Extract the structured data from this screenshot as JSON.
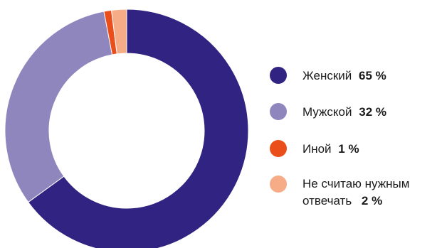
{
  "chart_data": {
    "type": "pie",
    "style": "donut",
    "slices": [
      {
        "label": "Женский",
        "value": 65,
        "value_text": "65 %",
        "color": "#312381"
      },
      {
        "label": "Мужской",
        "value": 32,
        "value_text": "32 %",
        "color": "#8f86be"
      },
      {
        "label": "Иной",
        "value": 1,
        "value_text": "1 %",
        "color": "#e94e1b"
      },
      {
        "label_lines": [
          "Не считаю нужным",
          "отвечать"
        ],
        "value": 2,
        "value_text": "2 %",
        "color": "#f6ac87"
      }
    ],
    "start": "top",
    "direction": "clockwise",
    "legend_position": "right",
    "background": "#ffffff"
  }
}
